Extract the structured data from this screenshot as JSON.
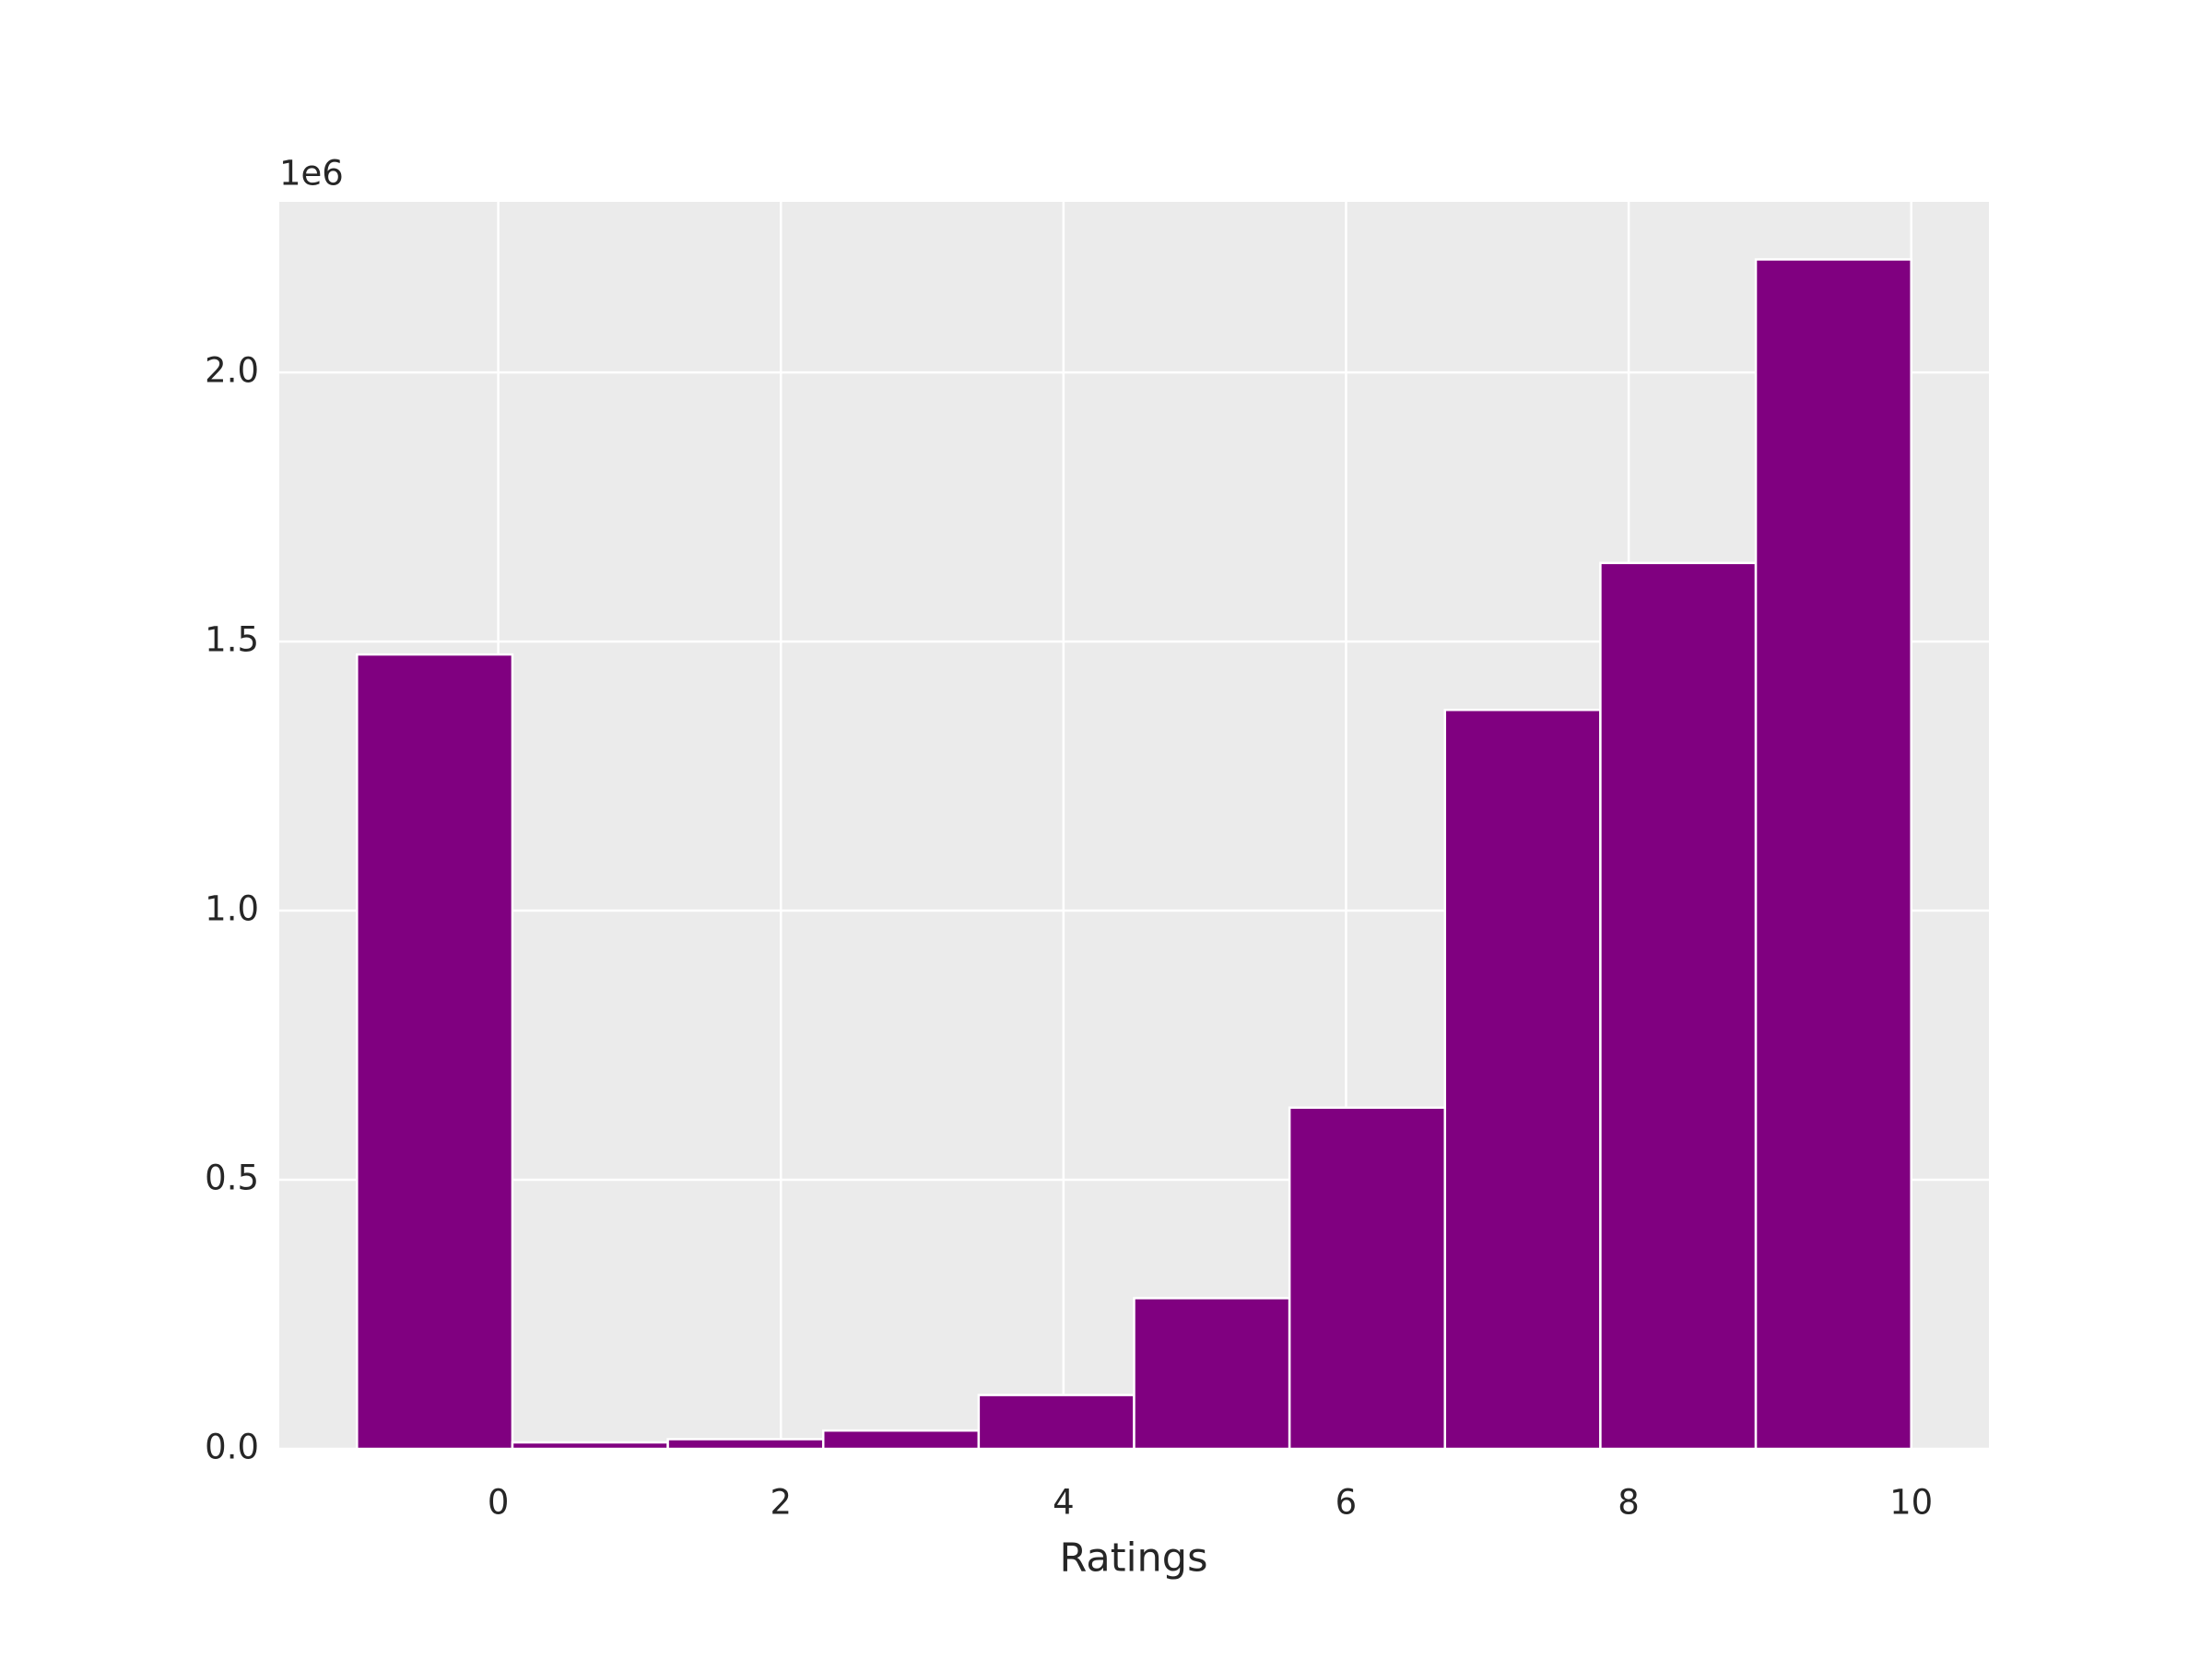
{
  "chart_data": {
    "type": "histogram",
    "xlabel": "Ratings",
    "y_offset_label": "1e6",
    "bins": [
      -1,
      0.1,
      1.2,
      2.3,
      3.4,
      4.5,
      5.6,
      6.7,
      7.8,
      8.9,
      10
    ],
    "counts": [
      1476000,
      12000,
      18000,
      34000,
      100000,
      280000,
      634000,
      1373000,
      1646000,
      2210000
    ],
    "color": "#800080",
    "xlim": [
      -1.55,
      10.55
    ],
    "ylim": [
      0,
      2317000
    ],
    "xticks": [
      0,
      2,
      4,
      6,
      8,
      10
    ],
    "yticks": [
      {
        "value": 0,
        "label": "0.0"
      },
      {
        "value": 500000,
        "label": "0.5"
      },
      {
        "value": 1000000,
        "label": "1.0"
      },
      {
        "value": 1500000,
        "label": "1.5"
      },
      {
        "value": 2000000,
        "label": "2.0"
      }
    ],
    "grid": true
  }
}
